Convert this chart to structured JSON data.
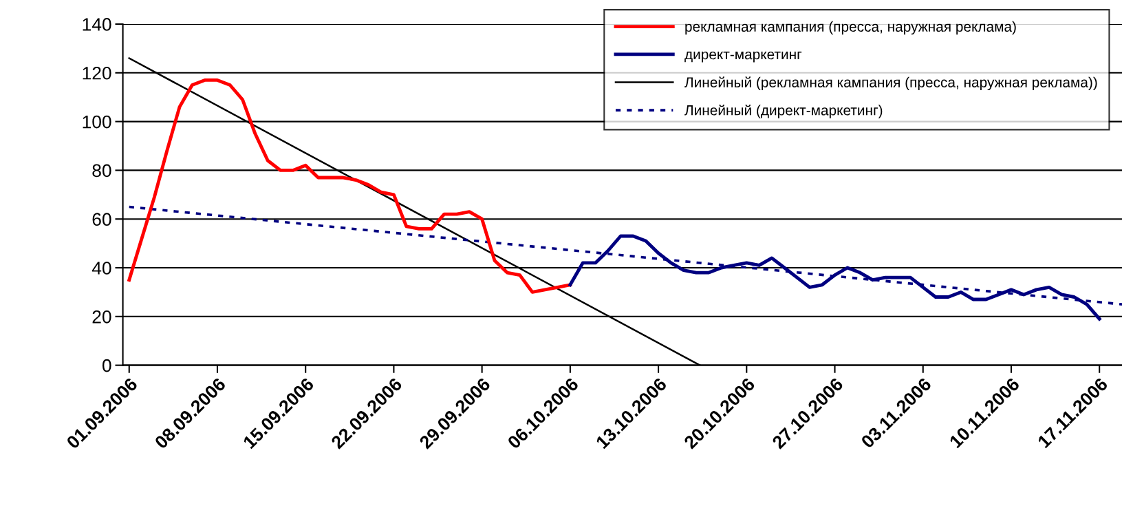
{
  "chart_data": {
    "type": "line",
    "ylim": [
      0,
      140
    ],
    "yticks": [
      0,
      20,
      40,
      60,
      80,
      100,
      120,
      140
    ],
    "xlim": [
      "2006-08-31T12:00",
      "2006-11-18T19:00"
    ],
    "xticks": [
      {
        "value": "2006-09-01",
        "label": "01.09.2006"
      },
      {
        "value": "2006-09-08",
        "label": "08.09.2006"
      },
      {
        "value": "2006-09-15",
        "label": "15.09.2006"
      },
      {
        "value": "2006-09-22",
        "label": "22.09.2006"
      },
      {
        "value": "2006-09-29",
        "label": "29.09.2006"
      },
      {
        "value": "2006-10-06",
        "label": "06.10.2006"
      },
      {
        "value": "2006-10-13",
        "label": "13.10.2006"
      },
      {
        "value": "2006-10-20",
        "label": "20.10.2006"
      },
      {
        "value": "2006-10-27",
        "label": "27.10.2006"
      },
      {
        "value": "2006-11-03",
        "label": "03.11.2006"
      },
      {
        "value": "2006-11-10",
        "label": "10.11.2006"
      },
      {
        "value": "2006-11-17",
        "label": "17.11.2006"
      }
    ],
    "grid": "y",
    "legend": "top right",
    "marker": "none",
    "series": [
      {
        "name": "рекламная кампания (пресса, наружная реклама)",
        "color": "#ff0000",
        "line_style": "solid",
        "x": [
          "2006-09-01",
          "2006-09-02",
          "2006-09-03",
          "2006-09-04",
          "2006-09-05",
          "2006-09-06",
          "2006-09-07",
          "2006-09-08",
          "2006-09-09",
          "2006-09-10",
          "2006-09-11",
          "2006-09-12",
          "2006-09-13",
          "2006-09-14",
          "2006-09-15",
          "2006-09-16",
          "2006-09-17",
          "2006-09-18",
          "2006-09-19",
          "2006-09-20",
          "2006-09-21",
          "2006-09-22",
          "2006-09-23",
          "2006-09-24",
          "2006-09-25",
          "2006-09-26",
          "2006-09-27",
          "2006-09-28",
          "2006-09-29",
          "2006-09-30",
          "2006-10-01",
          "2006-10-02",
          "2006-10-03",
          "2006-10-04",
          "2006-10-05",
          "2006-10-06"
        ],
        "values": [
          35,
          52,
          69,
          88,
          106,
          115,
          117,
          117,
          115,
          109,
          95,
          84,
          80,
          80,
          82,
          77,
          77,
          77,
          76,
          74,
          71,
          70,
          57,
          56,
          56,
          62,
          62,
          63,
          60,
          43,
          38,
          37,
          30,
          31,
          32,
          33
        ]
      },
      {
        "name": "директ-маркетинг",
        "color": "#000080",
        "line_style": "solid",
        "x": [
          "2006-10-06",
          "2006-10-07",
          "2006-10-08",
          "2006-10-09",
          "2006-10-10",
          "2006-10-11",
          "2006-10-12",
          "2006-10-13",
          "2006-10-14",
          "2006-10-15",
          "2006-10-16",
          "2006-10-17",
          "2006-10-18",
          "2006-10-19",
          "2006-10-20",
          "2006-10-21",
          "2006-10-22",
          "2006-10-23",
          "2006-10-24",
          "2006-10-25",
          "2006-10-26",
          "2006-10-27",
          "2006-10-28",
          "2006-10-29",
          "2006-10-30",
          "2006-10-31",
          "2006-11-01",
          "2006-11-02",
          "2006-11-03",
          "2006-11-04",
          "2006-11-05",
          "2006-11-06",
          "2006-11-07",
          "2006-11-08",
          "2006-11-09",
          "2006-11-10",
          "2006-11-11",
          "2006-11-12",
          "2006-11-13",
          "2006-11-14",
          "2006-11-15",
          "2006-11-16",
          "2006-11-17"
        ],
        "values": [
          33,
          42,
          42,
          47,
          53,
          53,
          51,
          46,
          42,
          39,
          38,
          38,
          40,
          41,
          42,
          41,
          44,
          40,
          36,
          32,
          33,
          37,
          40,
          38,
          35,
          36,
          36,
          36,
          32,
          28,
          28,
          30,
          27,
          27,
          29,
          31,
          29,
          31,
          32,
          29,
          28,
          25,
          19
        ]
      },
      {
        "name": "Линейный (рекламная кампания (пресса, наружная реклама))",
        "color": "#000000",
        "line_style": "solid",
        "x": [
          "2006-09-01",
          "2006-10-16T07:00"
        ],
        "values": [
          126,
          0
        ]
      },
      {
        "name": "Линейный (директ-маркетинг)",
        "color": "#000080",
        "line_style": "dotted",
        "x": [
          "2006-09-01",
          "2006-11-18T19:00"
        ],
        "values": [
          65,
          25
        ]
      }
    ]
  }
}
